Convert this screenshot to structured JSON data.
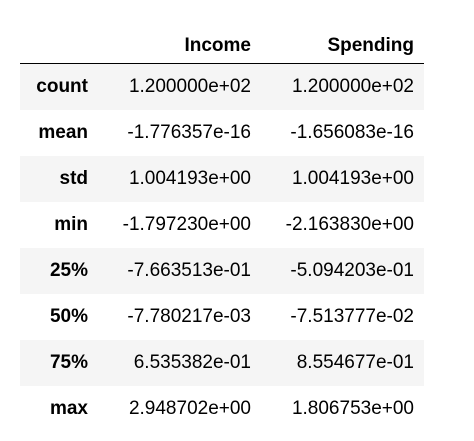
{
  "table": {
    "columns": [
      "Income",
      "Spending"
    ],
    "rows": [
      {
        "label": "count",
        "values": [
          "1.200000e+02",
          "1.200000e+02"
        ]
      },
      {
        "label": "mean",
        "values": [
          "-1.776357e-16",
          "-1.656083e-16"
        ]
      },
      {
        "label": "std",
        "values": [
          "1.004193e+00",
          "1.004193e+00"
        ]
      },
      {
        "label": "min",
        "values": [
          "-1.797230e+00",
          "-2.163830e+00"
        ]
      },
      {
        "label": "25%",
        "values": [
          "-7.663513e-01",
          "-5.094203e-01"
        ]
      },
      {
        "label": "50%",
        "values": [
          "-7.780217e-03",
          "-7.513777e-02"
        ]
      },
      {
        "label": "75%",
        "values": [
          "6.535382e-01",
          "8.554677e-01"
        ]
      },
      {
        "label": "max",
        "values": [
          "2.948702e+00",
          "1.806753e+00"
        ]
      }
    ]
  },
  "colors": {
    "text": "#000000",
    "stripe": "#f5f5f5",
    "header_rule": "#000000"
  }
}
